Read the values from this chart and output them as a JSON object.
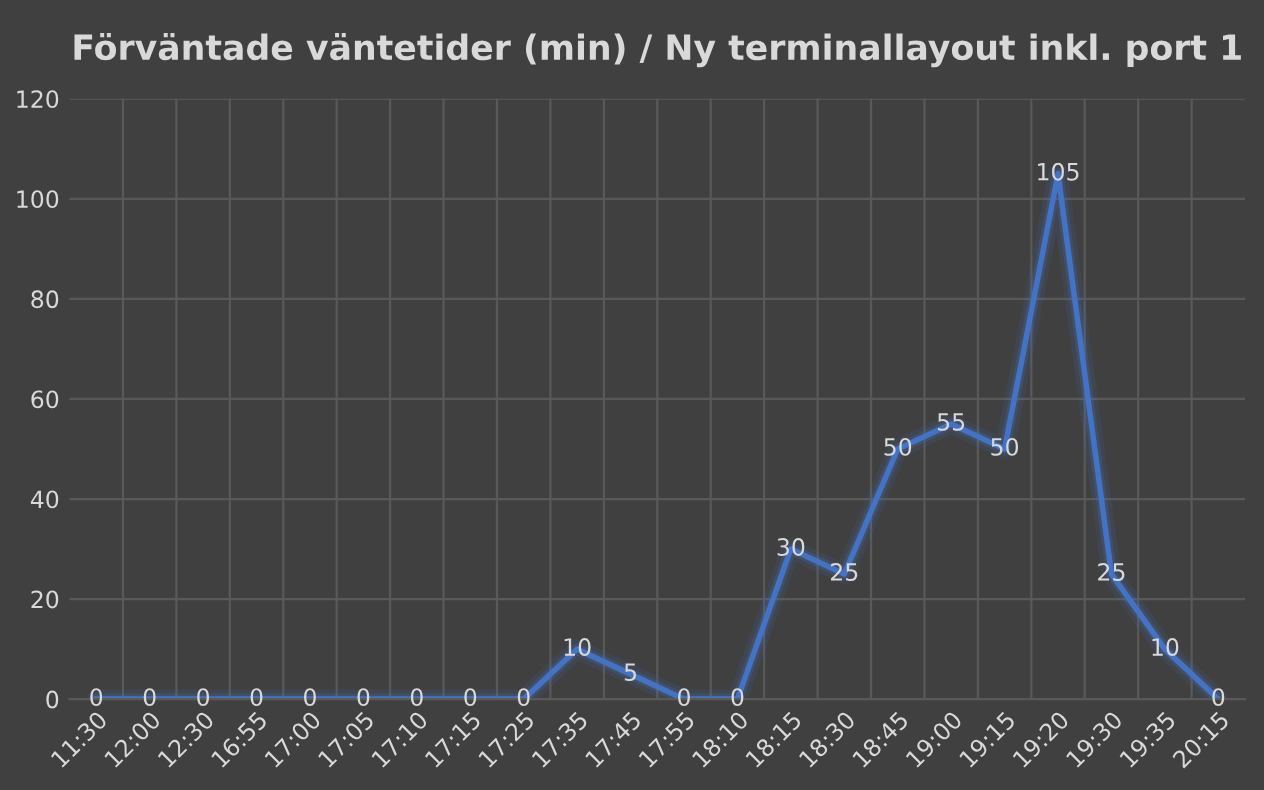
{
  "chart_data": {
    "type": "line",
    "title": "Förväntade väntetider (min) / Ny terminallayout inkl. port 1",
    "categories": [
      "11:30",
      "12:00",
      "12:30",
      "16:55",
      "17:00",
      "17:05",
      "17:10",
      "17:15",
      "17:25",
      "17:35",
      "17:45",
      "17:55",
      "18:10",
      "18:15",
      "18:30",
      "18:45",
      "19:00",
      "19:15",
      "19:20",
      "19:30",
      "19:35",
      "20:15"
    ],
    "values": [
      0,
      0,
      0,
      0,
      0,
      0,
      0,
      0,
      0,
      10,
      5,
      0,
      0,
      30,
      25,
      50,
      55,
      50,
      105,
      25,
      10,
      0
    ],
    "color": "#4472c4",
    "ylim": [
      0,
      120
    ],
    "yticks": [
      0,
      20,
      40,
      60,
      80,
      100,
      120
    ],
    "grid": true,
    "data_labels": true,
    "marker": "none",
    "line_style": "solid"
  }
}
